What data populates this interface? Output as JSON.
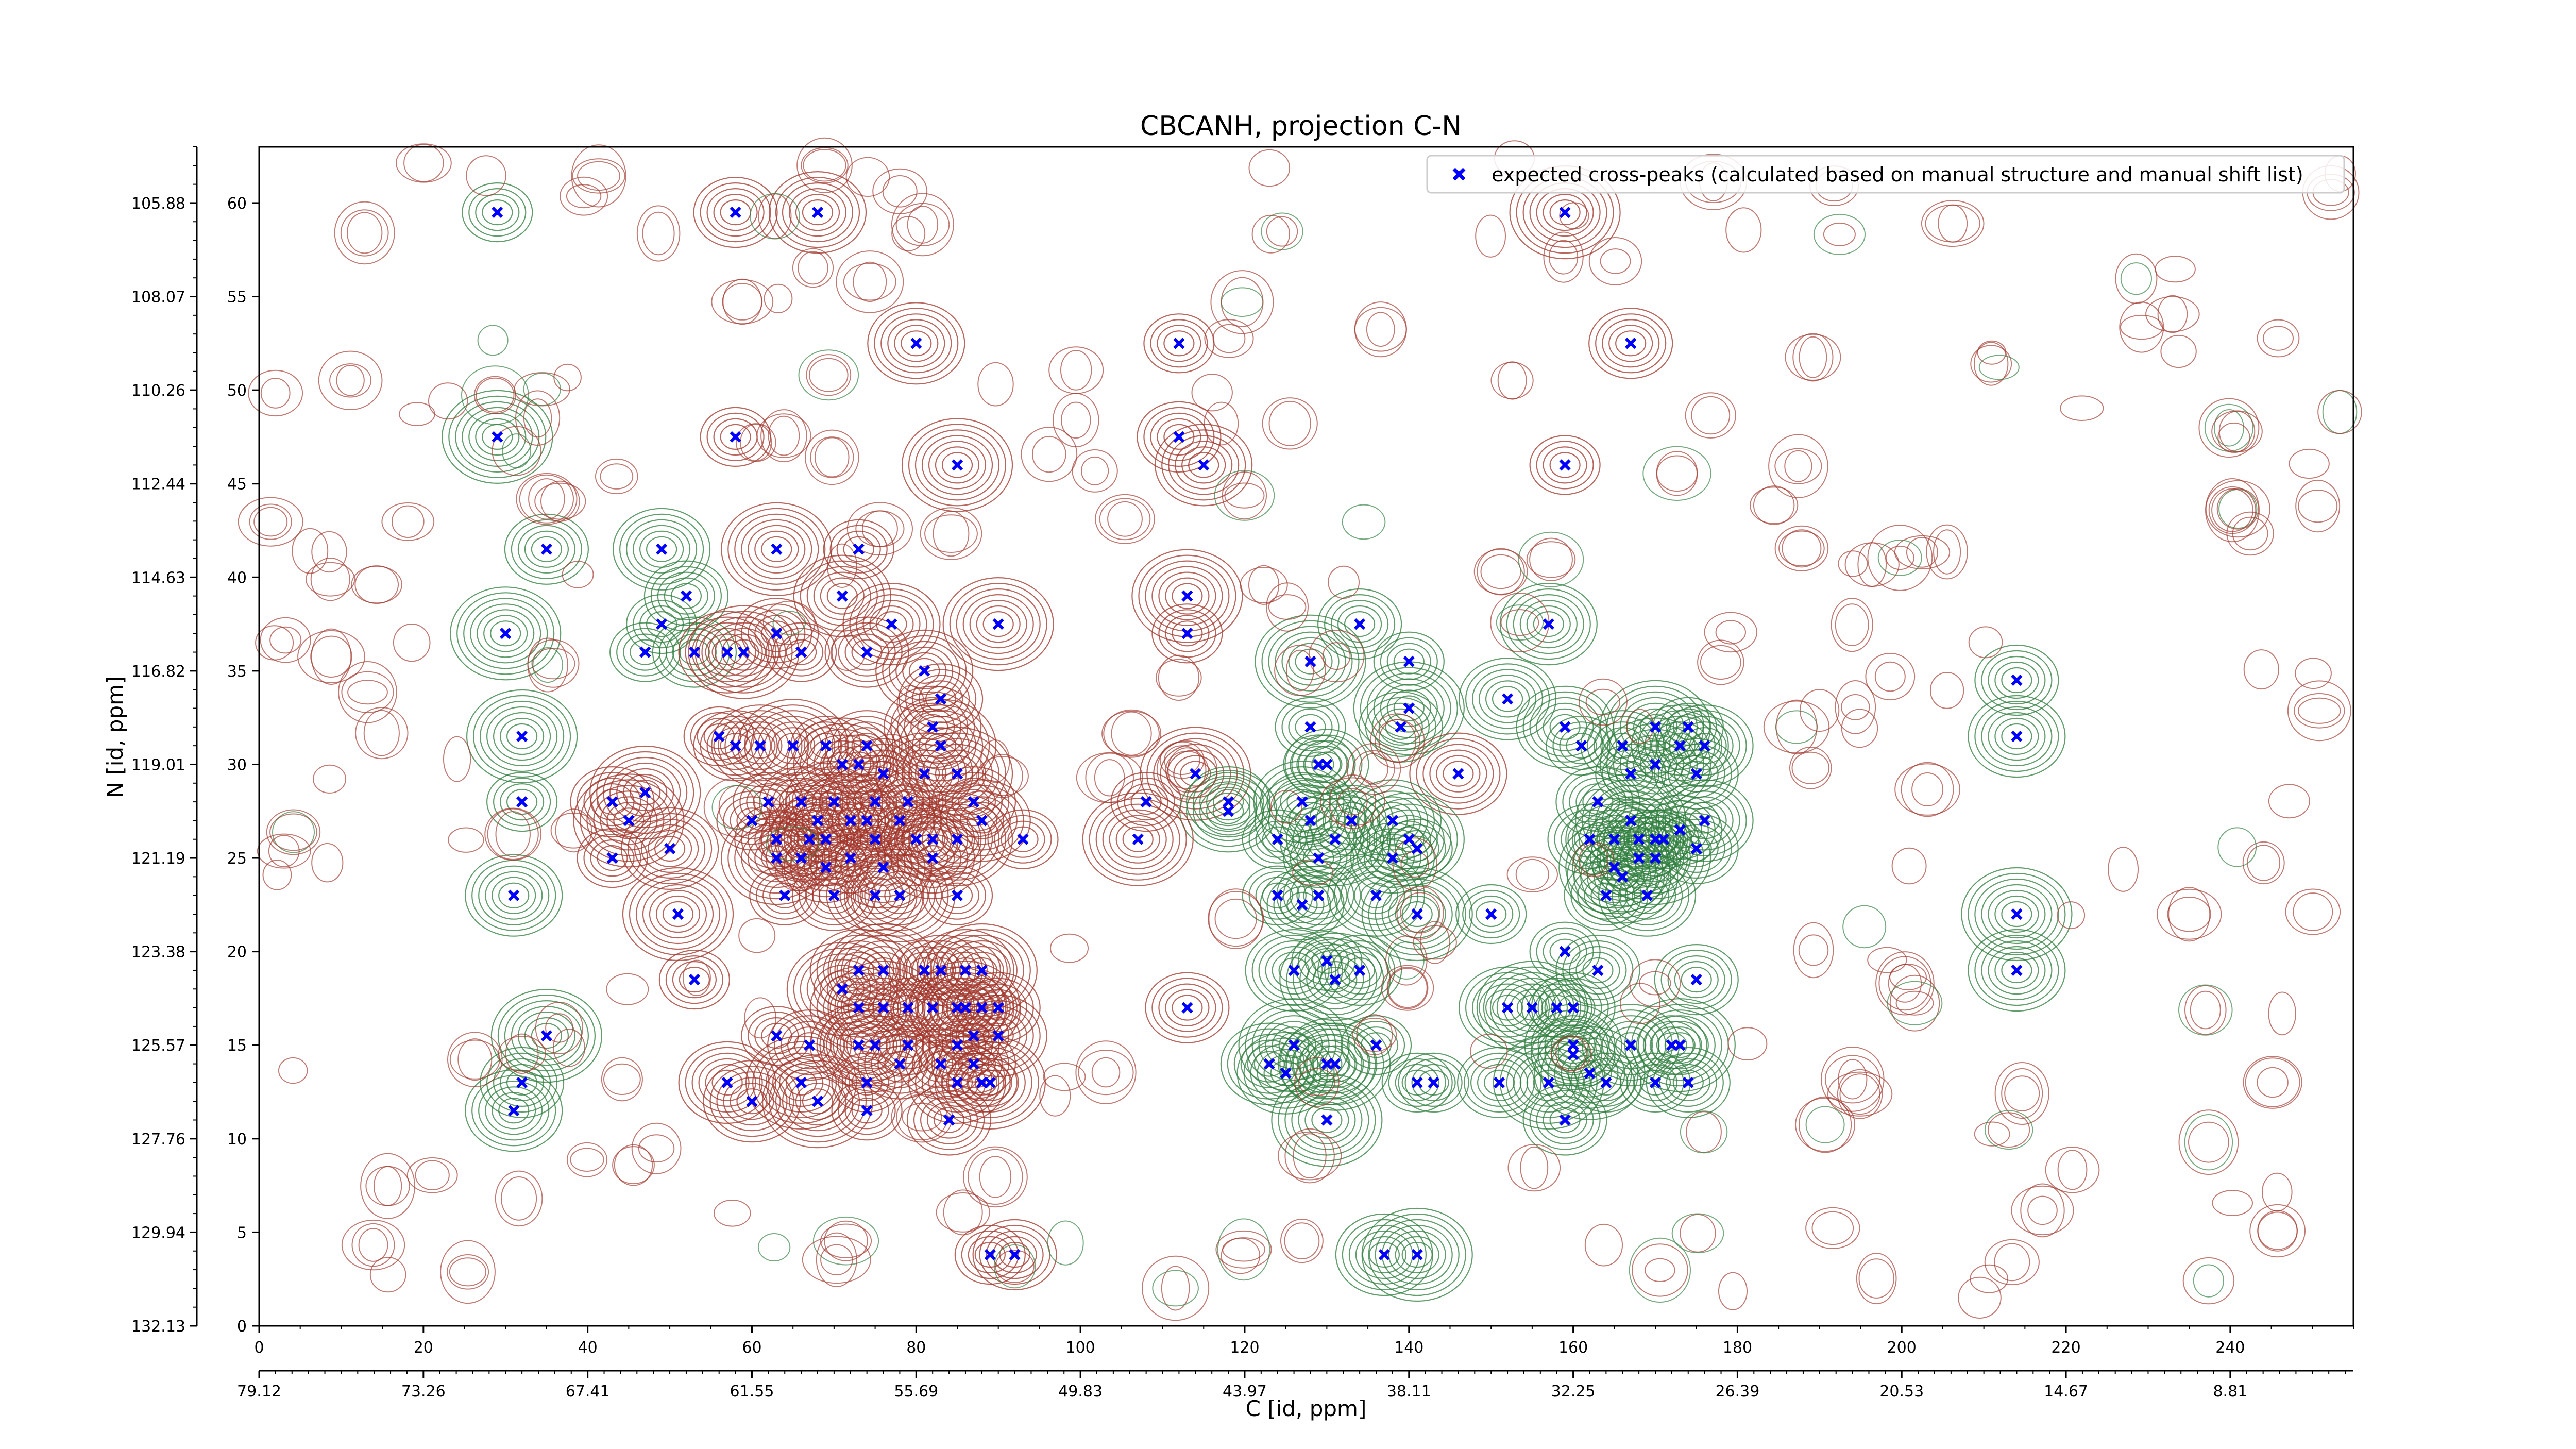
{
  "chart_data": {
    "type": "scatter",
    "title": "CBCANH, projection C-N",
    "xlabel": "C [id, ppm]",
    "ylabel": "N [id, ppm]",
    "xlim": [
      0,
      255
    ],
    "ylim": [
      0,
      63
    ],
    "x_ticks": [
      0,
      20,
      40,
      60,
      80,
      100,
      120,
      140,
      160,
      180,
      200,
      220,
      240
    ],
    "y_ticks": [
      0,
      5,
      10,
      15,
      20,
      25,
      30,
      35,
      40,
      45,
      50,
      55,
      60
    ],
    "x_ppm_ticks": [
      {
        "x": 0,
        "label": "79.12"
      },
      {
        "x": 20,
        "label": "73.26"
      },
      {
        "x": 40,
        "label": "67.41"
      },
      {
        "x": 60,
        "label": "61.55"
      },
      {
        "x": 80,
        "label": "55.69"
      },
      {
        "x": 100,
        "label": "49.83"
      },
      {
        "x": 120,
        "label": "43.97"
      },
      {
        "x": 140,
        "label": "38.11"
      },
      {
        "x": 160,
        "label": "32.25"
      },
      {
        "x": 180,
        "label": "26.39"
      },
      {
        "x": 200,
        "label": "20.53"
      },
      {
        "x": 220,
        "label": "14.67"
      },
      {
        "x": 240,
        "label": "8.81"
      }
    ],
    "y_ppm_ticks": [
      {
        "y": 0,
        "label": "132.13"
      },
      {
        "y": 5,
        "label": "129.94"
      },
      {
        "y": 10,
        "label": "127.76"
      },
      {
        "y": 15,
        "label": "125.57"
      },
      {
        "y": 20,
        "label": "123.38"
      },
      {
        "y": 25,
        "label": "121.19"
      },
      {
        "y": 30,
        "label": "119.01"
      },
      {
        "y": 35,
        "label": "116.82"
      },
      {
        "y": 40,
        "label": "114.63"
      },
      {
        "y": 45,
        "label": "112.44"
      },
      {
        "y": 50,
        "label": "110.26"
      },
      {
        "y": 55,
        "label": "108.07"
      },
      {
        "y": 60,
        "label": "105.88"
      }
    ],
    "legend": {
      "placement": "top-right",
      "label": "expected cross-peaks (calculated based on manual structure and manual shift list)"
    },
    "colors": {
      "peak": "#0000ff",
      "contour_positive": "#a0342a",
      "contour_negative": "#2e7d3c",
      "axis": "#000000"
    },
    "series": [
      {
        "name": "expected cross-peaks (calculated based on manual structure and manual shift list)",
        "points": [
          [
            29,
            59.5
          ],
          [
            58,
            59.5
          ],
          [
            68,
            59.5
          ],
          [
            159,
            59.5
          ],
          [
            112,
            52.5
          ],
          [
            167,
            52.5
          ],
          [
            80,
            52.5
          ],
          [
            29,
            47.5
          ],
          [
            58,
            47.5
          ],
          [
            112,
            47.5
          ],
          [
            115,
            46
          ],
          [
            85,
            46
          ],
          [
            159,
            46
          ],
          [
            35,
            41.5
          ],
          [
            49,
            41.5
          ],
          [
            63,
            41.5
          ],
          [
            73,
            41.5
          ],
          [
            52,
            39
          ],
          [
            71,
            39
          ],
          [
            113,
            39
          ],
          [
            49,
            37.5
          ],
          [
            63,
            37
          ],
          [
            77,
            37.5
          ],
          [
            90,
            37.5
          ],
          [
            113,
            37
          ],
          [
            134,
            37.5
          ],
          [
            157,
            37.5
          ],
          [
            30,
            37
          ],
          [
            47,
            36
          ],
          [
            53,
            36
          ],
          [
            57,
            36
          ],
          [
            59,
            36
          ],
          [
            66,
            36
          ],
          [
            74,
            36
          ],
          [
            81,
            35
          ],
          [
            128,
            35.5
          ],
          [
            140,
            35.5
          ],
          [
            83,
            33.5
          ],
          [
            152,
            33.5
          ],
          [
            140,
            33
          ],
          [
            128,
            32
          ],
          [
            139,
            32
          ],
          [
            159,
            32
          ],
          [
            170,
            32
          ],
          [
            174,
            32
          ],
          [
            214,
            34.5
          ],
          [
            214,
            31.5
          ],
          [
            32,
            31.5
          ],
          [
            56,
            31.5
          ],
          [
            58,
            31
          ],
          [
            61,
            31
          ],
          [
            65,
            31
          ],
          [
            69,
            31
          ],
          [
            74,
            31
          ],
          [
            82,
            32
          ],
          [
            83,
            31
          ],
          [
            161,
            31
          ],
          [
            166,
            31
          ],
          [
            173,
            31
          ],
          [
            170,
            30
          ],
          [
            167,
            29.5
          ],
          [
            175,
            29.5
          ],
          [
            176,
            31
          ],
          [
            71,
            30
          ],
          [
            73,
            30
          ],
          [
            76,
            29.5
          ],
          [
            81,
            29.5
          ],
          [
            85,
            29.5
          ],
          [
            129,
            30
          ],
          [
            130,
            30
          ],
          [
            146,
            29.5
          ],
          [
            114,
            29.5
          ],
          [
            108,
            28
          ],
          [
            118,
            28
          ],
          [
            118,
            27.5
          ],
          [
            47,
            28.5
          ],
          [
            62,
            28
          ],
          [
            66,
            28
          ],
          [
            70,
            28
          ],
          [
            75,
            28
          ],
          [
            79,
            28
          ],
          [
            87,
            28
          ],
          [
            127,
            28
          ],
          [
            128,
            27
          ],
          [
            32,
            28
          ],
          [
            43,
            28
          ],
          [
            68,
            27
          ],
          [
            72,
            27
          ],
          [
            74,
            27
          ],
          [
            78,
            27
          ],
          [
            88,
            27
          ],
          [
            85,
            26
          ],
          [
            93,
            26
          ],
          [
            163,
            28
          ],
          [
            165,
            26
          ],
          [
            167,
            27
          ],
          [
            170,
            26
          ],
          [
            173,
            26.5
          ],
          [
            176,
            27
          ],
          [
            45,
            27
          ],
          [
            60,
            27
          ],
          [
            63,
            26
          ],
          [
            67,
            26
          ],
          [
            69,
            26
          ],
          [
            75,
            26
          ],
          [
            80,
            26
          ],
          [
            82,
            26
          ],
          [
            131,
            26
          ],
          [
            124,
            26
          ],
          [
            133,
            27
          ],
          [
            138,
            27
          ],
          [
            140,
            26
          ],
          [
            141,
            25.5
          ],
          [
            162,
            26
          ],
          [
            168,
            26
          ],
          [
            170,
            25
          ],
          [
            171,
            26
          ],
          [
            175,
            25.5
          ],
          [
            50,
            25.5
          ],
          [
            63,
            25
          ],
          [
            66,
            25
          ],
          [
            72,
            25
          ],
          [
            82,
            25
          ],
          [
            107,
            26
          ],
          [
            129,
            25
          ],
          [
            138,
            25
          ],
          [
            168,
            25
          ],
          [
            165,
            24.5
          ],
          [
            43,
            25
          ],
          [
            69,
            24.5
          ],
          [
            76,
            24.5
          ],
          [
            166,
            24
          ],
          [
            64,
            23
          ],
          [
            70,
            23
          ],
          [
            75,
            23
          ],
          [
            78,
            23
          ],
          [
            124,
            23
          ],
          [
            129,
            23
          ],
          [
            31,
            23
          ],
          [
            51,
            22
          ],
          [
            85,
            23
          ],
          [
            127,
            22.5
          ],
          [
            136,
            23
          ],
          [
            141,
            22
          ],
          [
            150,
            22
          ],
          [
            164,
            23
          ],
          [
            169,
            23
          ],
          [
            214,
            22
          ],
          [
            130,
            19.5
          ],
          [
            134,
            19
          ],
          [
            126,
            19
          ],
          [
            131,
            18.5
          ],
          [
            159,
            20
          ],
          [
            163,
            19
          ],
          [
            73,
            19
          ],
          [
            76,
            19
          ],
          [
            81,
            19
          ],
          [
            83,
            19
          ],
          [
            86,
            19
          ],
          [
            88,
            19
          ],
          [
            53,
            18.5
          ],
          [
            175,
            18.5
          ],
          [
            214,
            19
          ],
          [
            71,
            18
          ],
          [
            79,
            17
          ],
          [
            82,
            17
          ],
          [
            85,
            17
          ],
          [
            86,
            17
          ],
          [
            88,
            17
          ],
          [
            90,
            17
          ],
          [
            73,
            17
          ],
          [
            76,
            17
          ],
          [
            87,
            15.5
          ],
          [
            113,
            17
          ],
          [
            152,
            17
          ],
          [
            155,
            17
          ],
          [
            158,
            17
          ],
          [
            160,
            17
          ],
          [
            160,
            15
          ],
          [
            35,
            15.5
          ],
          [
            63,
            15.5
          ],
          [
            67,
            15
          ],
          [
            73,
            15
          ],
          [
            75,
            15
          ],
          [
            79,
            15
          ],
          [
            85,
            15
          ],
          [
            90,
            15.5
          ],
          [
            126,
            15
          ],
          [
            136,
            15
          ],
          [
            160,
            14.5
          ],
          [
            167,
            15
          ],
          [
            173,
            15
          ],
          [
            172,
            15
          ],
          [
            83,
            14
          ],
          [
            85,
            13
          ],
          [
            89,
            13
          ],
          [
            88,
            13
          ],
          [
            87,
            14
          ],
          [
            130,
            14
          ],
          [
            162,
            13.5
          ],
          [
            170,
            13
          ],
          [
            174,
            13
          ],
          [
            57,
            13
          ],
          [
            66,
            13
          ],
          [
            74,
            13
          ],
          [
            78,
            14
          ],
          [
            123,
            14
          ],
          [
            131,
            14
          ],
          [
            141,
            13
          ],
          [
            151,
            13
          ],
          [
            125,
            13.5
          ],
          [
            157,
            13
          ],
          [
            164,
            13
          ],
          [
            32,
            13
          ],
          [
            60,
            12
          ],
          [
            68,
            12
          ],
          [
            74,
            11.5
          ],
          [
            84,
            11
          ],
          [
            31,
            11.5
          ],
          [
            130,
            11
          ],
          [
            143,
            13
          ],
          [
            159,
            11
          ],
          [
            137,
            3.8
          ],
          [
            141,
            3.8
          ],
          [
            89,
            3.8
          ],
          [
            92,
            3.8
          ]
        ]
      }
    ]
  }
}
